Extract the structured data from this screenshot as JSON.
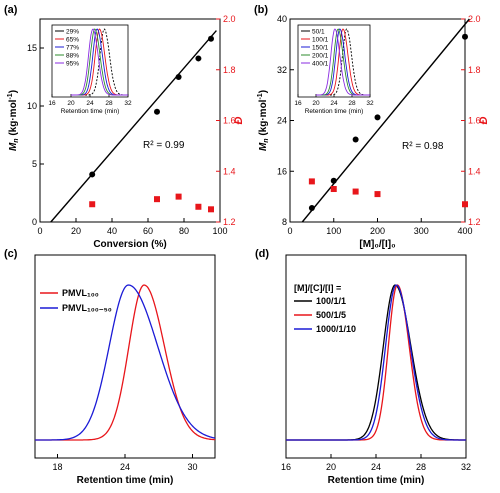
{
  "colors": {
    "black": "#000000",
    "red": "#e8161b",
    "blue": "#1b1bd6",
    "green": "#2e8b2e",
    "purple": "#8a2be2",
    "orange": "#ff8c00",
    "gray": "#888888"
  },
  "chart_data": [
    {
      "panel": "(a)",
      "type": "scatter",
      "xlabel": "Conversion (%)",
      "ylabel_left": "M_n (kg·mol⁻¹)",
      "ylabel_right": "Đ",
      "xlim": [
        0,
        100
      ],
      "xticks": [
        "0",
        "20",
        "40",
        "60",
        "80",
        "100"
      ],
      "ylim_left": [
        0,
        17.5
      ],
      "yticks_left": [
        "0",
        "5",
        "10",
        "15"
      ],
      "ylim_right": [
        1.2,
        2.0
      ],
      "yticks_right": [
        "1.2",
        "1.4",
        "1.6",
        "1.8",
        "2.0"
      ],
      "annotation": "R² = 0.99",
      "series": [
        {
          "axis": "left",
          "color": "#000000",
          "points": [
            [
              29,
              4.1
            ],
            [
              65,
              9.5
            ],
            [
              77,
              12.5
            ],
            [
              88,
              14.1
            ],
            [
              95,
              15.8
            ]
          ]
        },
        {
          "axis": "right",
          "color": "#e8161b",
          "points": [
            [
              29,
              1.27
            ],
            [
              65,
              1.29
            ],
            [
              77,
              1.3
            ],
            [
              88,
              1.26
            ],
            [
              95,
              1.25
            ]
          ]
        }
      ],
      "fit_line": [
        [
          6,
          0
        ],
        [
          98,
          16.5
        ]
      ],
      "inset": {
        "xlabel": "Retention time (min)",
        "xticks": [
          "16",
          "20",
          "24",
          "28",
          "32"
        ],
        "legend": [
          "29%",
          "65%",
          "77%",
          "88%",
          "95%"
        ],
        "colors": [
          "#000000",
          "#e8161b",
          "#1b1bd6",
          "#2e8b2e",
          "#8a2be2"
        ],
        "peak_centers": [
          27.0,
          26.0,
          25.5,
          25.0,
          24.6
        ]
      }
    },
    {
      "panel": "(b)",
      "type": "scatter",
      "xlabel": "[M]₀/[I]₀",
      "ylabel_left": "M_n (kg·mol⁻¹)",
      "ylabel_right": "Đ",
      "xlim": [
        0,
        400
      ],
      "xticks": [
        "0",
        "100",
        "200",
        "300",
        "400"
      ],
      "ylim_left": [
        8,
        40
      ],
      "yticks_left": [
        "8",
        "16",
        "24",
        "32",
        "40"
      ],
      "ylim_right": [
        1.2,
        2.0
      ],
      "yticks_right": [
        "1.2",
        "1.4",
        "1.6",
        "1.8",
        "2.0"
      ],
      "annotation": "R² = 0.98",
      "series": [
        {
          "axis": "left",
          "color": "#000000",
          "points": [
            [
              50,
              10.2
            ],
            [
              100,
              14.5
            ],
            [
              150,
              21
            ],
            [
              200,
              24.5
            ],
            [
              400,
              37.2
            ]
          ]
        },
        {
          "axis": "right",
          "color": "#e8161b",
          "points": [
            [
              50,
              1.36
            ],
            [
              100,
              1.33
            ],
            [
              150,
              1.32
            ],
            [
              200,
              1.31
            ],
            [
              400,
              1.27
            ]
          ]
        }
      ],
      "fit_line": [
        [
          28,
          8
        ],
        [
          410,
          40
        ]
      ],
      "inset": {
        "xlabel": "Retention time (min)",
        "xticks": [
          "16",
          "20",
          "24",
          "28",
          "32"
        ],
        "legend": [
          "50/1",
          "100/1",
          "150/1",
          "200/1",
          "400/1"
        ],
        "colors": [
          "#000000",
          "#e8161b",
          "#1b1bd6",
          "#2e8b2e",
          "#8a2be2"
        ],
        "peak_centers": [
          26.8,
          26.0,
          25.3,
          24.9,
          24.2
        ]
      }
    },
    {
      "panel": "(c)",
      "type": "line",
      "xlabel": "Retention time (min)",
      "xlim": [
        16,
        32
      ],
      "xticks": [
        "18",
        "24",
        "30"
      ],
      "legend": [
        "PMVL₁₀₀",
        "PMVL₁₀₀₋₅₀"
      ],
      "series": [
        {
          "name": "PMVL₁₀₀",
          "color": "#e8161b",
          "peak": 25.7,
          "width_left": 1.35,
          "width_right": 1.8
        },
        {
          "name": "PMVL₁₀₀₋₅₀",
          "color": "#1b1bd6",
          "peak": 24.3,
          "width_left": 1.7,
          "width_right": 2.6
        }
      ]
    },
    {
      "panel": "(d)",
      "type": "line",
      "xlabel": "Retention time (min)",
      "xlim": [
        16,
        32
      ],
      "xticks": [
        "16",
        "20",
        "24",
        "28",
        "32"
      ],
      "legend_title": "[M]/[C]/[I] =",
      "legend": [
        "100/1/1",
        "500/1/5",
        "1000/1/10"
      ],
      "series": [
        {
          "name": "100/1/1",
          "color": "#000000",
          "peak": 25.7,
          "width_left": 1.05,
          "width_right": 1.4
        },
        {
          "name": "500/1/5",
          "color": "#e8161b",
          "peak": 25.9,
          "width_left": 0.8,
          "width_right": 1.05
        },
        {
          "name": "1000/1/10",
          "color": "#1b1bd6",
          "peak": 25.8,
          "width_left": 0.95,
          "width_right": 1.25
        }
      ]
    }
  ]
}
